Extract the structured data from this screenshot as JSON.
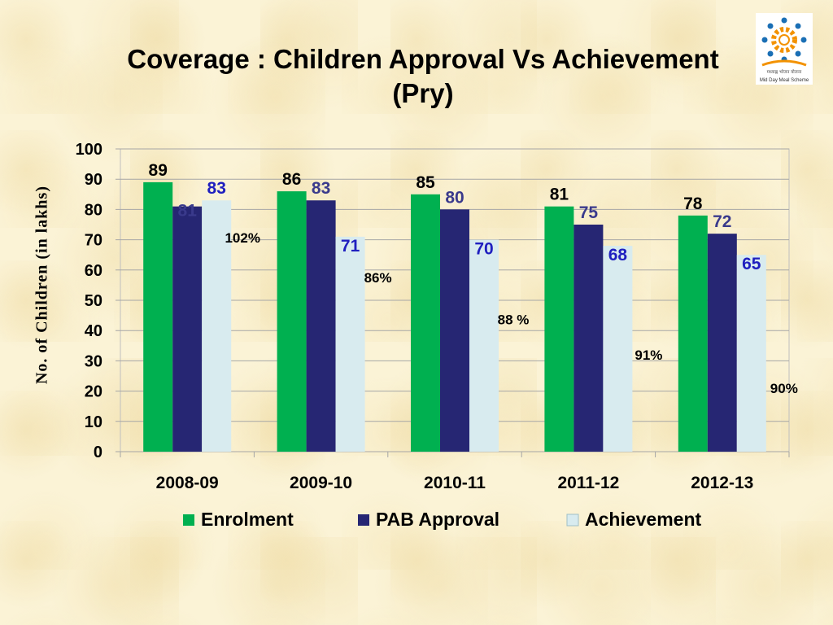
{
  "title_line1": "Coverage : Children Approval Vs Achievement",
  "title_line2": "(Pry)",
  "logo": {
    "icon": "mid-day-meal-scheme-logo-icon",
    "caption": "Mid Day Meal Scheme",
    "hindi_caption": "मध्याह्न भोजन योजना"
  },
  "chart_data": {
    "type": "bar",
    "title": "Coverage : Children Approval Vs Achievement (Pry)",
    "xlabel": "",
    "ylabel": "No. of Children (in lakhs)",
    "ylim": [
      0,
      100
    ],
    "yticks": [
      "0",
      "10",
      "20",
      "30",
      "40",
      "50",
      "60",
      "70",
      "80",
      "90",
      "100"
    ],
    "grid": true,
    "legend": "bottom",
    "categories": [
      "2008-09",
      "2009-10",
      "2010-11",
      "2011-12",
      "2012-13"
    ],
    "series": [
      {
        "name": "Enrolment",
        "color": "#00b050",
        "label_color": "#000000",
        "values": [
          89,
          86,
          85,
          81,
          78
        ]
      },
      {
        "name": "PAB Approval",
        "color": "#262673",
        "label_color": "#3a3a8c",
        "values": [
          81,
          83,
          80,
          75,
          72
        ]
      },
      {
        "name": "Achievement",
        "color": "#d8ebef",
        "label_color": "#1f1fbf",
        "values": [
          83,
          71,
          70,
          68,
          65
        ]
      }
    ],
    "percent_labels": [
      "102%",
      "86%",
      "88 %",
      "91%",
      "90%"
    ]
  }
}
